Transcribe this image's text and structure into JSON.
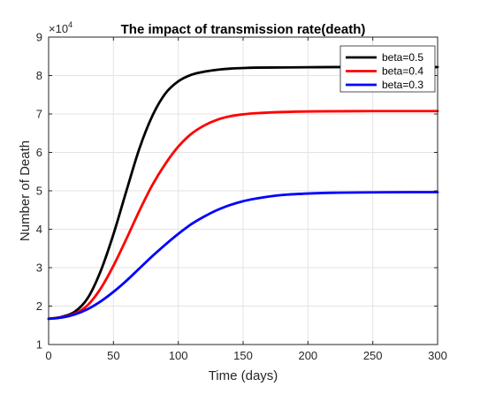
{
  "chart_data": {
    "type": "line",
    "title": "The impact of transmission rate(death)",
    "xlabel": "Time (days)",
    "ylabel": "Number of Death",
    "xlim": [
      0,
      300
    ],
    "ylim": [
      1,
      9
    ],
    "y_multiplier_base": "×10",
    "y_multiplier_exp": "4",
    "y_scale": 10000,
    "xticks": [
      0,
      50,
      100,
      150,
      200,
      250,
      300
    ],
    "yticks": [
      1,
      2,
      3,
      4,
      5,
      6,
      7,
      8,
      9
    ],
    "grid": true,
    "legend_position": "top-right",
    "x": [
      0,
      10,
      20,
      30,
      40,
      50,
      60,
      70,
      80,
      90,
      100,
      110,
      120,
      130,
      140,
      150,
      160,
      180,
      200,
      220,
      250,
      280,
      300
    ],
    "series": [
      {
        "name": "beta=0.5",
        "color": "#000000",
        "values": [
          16700,
          17200,
          18500,
          22000,
          29000,
          38700,
          50000,
          61000,
          69500,
          75300,
          78500,
          80200,
          81000,
          81500,
          81800,
          81950,
          82050,
          82100,
          82150,
          82200,
          82200,
          82200,
          82200
        ]
      },
      {
        "name": "beta=0.4",
        "color": "#ff0000",
        "values": [
          16700,
          17100,
          18000,
          20200,
          24500,
          30500,
          37500,
          44800,
          51500,
          57000,
          61500,
          64800,
          67000,
          68500,
          69400,
          69900,
          70200,
          70500,
          70650,
          70700,
          70750,
          70750,
          70750
        ]
      },
      {
        "name": "beta=0.3",
        "color": "#0000ff",
        "values": [
          16700,
          17000,
          17800,
          19200,
          21200,
          23700,
          26600,
          29800,
          33000,
          36000,
          38800,
          41300,
          43300,
          45000,
          46300,
          47300,
          48000,
          48900,
          49300,
          49500,
          49600,
          49650,
          49650
        ]
      }
    ]
  }
}
